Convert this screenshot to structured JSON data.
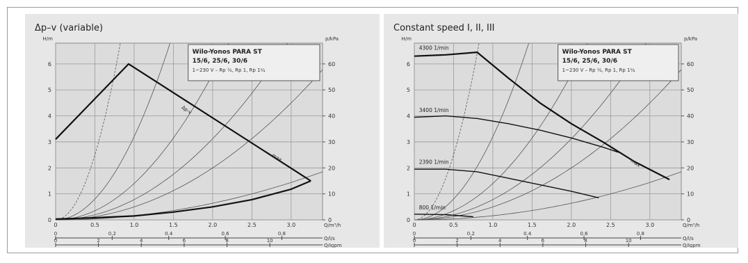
{
  "chart_data": [
    {
      "type": "line",
      "title": "Δp–v (variable)",
      "ylabel_left": "H/m",
      "ylabel_right": "p/kPa",
      "xlabel": "Q/m³/h",
      "xlim": [
        0,
        3.4
      ],
      "ylim": [
        0,
        6.8
      ],
      "xticks": [
        "0",
        "0.5",
        "1.0",
        "1.5",
        "2.0",
        "2.5",
        "3.0"
      ],
      "yticks_left": [
        "0",
        "1",
        "2",
        "3",
        "4",
        "5",
        "6"
      ],
      "yticks_right": [
        "0",
        "10",
        "20",
        "30",
        "40",
        "50",
        "60"
      ],
      "secondary_axes": [
        {
          "label": "Q/l/s",
          "max": 0.944,
          "ticks": [
            "0",
            "0.2",
            "0.4",
            "0.6",
            "0.8"
          ]
        },
        {
          "label": "Q/Igpm",
          "max": 12.46,
          "ticks": [
            "0",
            "2",
            "4",
            "6",
            "8",
            "10"
          ]
        }
      ],
      "legend_box": {
        "title": "Wilo-Yonos PARA ST",
        "models": "15/6, 25/6, 30/6",
        "spec": "1~230 V – Rp ½, Rp 1, Rp 1¼"
      },
      "series": [
        {
          "name": "Δp-v",
          "x": [
            0,
            0.93,
            3.25
          ],
          "y": [
            3.1,
            6.0,
            1.5
          ]
        },
        {
          "name": "max",
          "x": [
            0,
            0.5,
            1.0,
            1.5,
            2.0,
            2.5,
            3.0,
            3.25
          ],
          "y": [
            0.03,
            0.08,
            0.15,
            0.3,
            0.5,
            0.78,
            1.18,
            1.5
          ]
        }
      ],
      "curve_labels": [
        "Δp-v",
        "max"
      ]
    },
    {
      "type": "line",
      "title": "Constant speed I, II, III",
      "ylabel_left": "H/m",
      "ylabel_right": "p/kPa",
      "xlabel": "Q/m³/h",
      "xlim": [
        0,
        3.4
      ],
      "ylim": [
        0,
        6.8
      ],
      "xticks": [
        "0",
        "0.5",
        "1.0",
        "1.5",
        "2.0",
        "2.5",
        "3.0"
      ],
      "yticks_left": [
        "0",
        "1",
        "2",
        "3",
        "4",
        "5",
        "6"
      ],
      "yticks_right": [
        "0",
        "10",
        "20",
        "30",
        "40",
        "50",
        "60"
      ],
      "secondary_axes": [
        {
          "label": "Q/l/s",
          "max": 0.944,
          "ticks": [
            "0",
            "0.2",
            "0.4",
            "0.6",
            "0.8"
          ]
        },
        {
          "label": "Q/Igpm",
          "max": 12.46,
          "ticks": [
            "0",
            "2",
            "4",
            "6",
            "8",
            "10"
          ]
        }
      ],
      "legend_box": {
        "title": "Wilo-Yonos PARA ST",
        "models": "15/6, 25/6, 30/6",
        "spec": "1~230 V – Rp ½, Rp 1, Rp 1¼"
      },
      "series": [
        {
          "name": "4300 1/min",
          "x": [
            0,
            0.4,
            0.8,
            1.2,
            1.6,
            2.0,
            2.4,
            2.8,
            3.25
          ],
          "y": [
            6.3,
            6.35,
            6.45,
            5.45,
            4.5,
            3.7,
            3.0,
            2.25,
            1.55
          ]
        },
        {
          "name": "3400 1/min",
          "x": [
            0,
            0.4,
            0.8,
            1.2,
            1.6,
            2.0,
            2.4,
            2.6
          ],
          "y": [
            3.95,
            4.0,
            3.9,
            3.7,
            3.45,
            3.15,
            2.8,
            2.6
          ]
        },
        {
          "name": "2390 1/min",
          "x": [
            0,
            0.4,
            0.8,
            1.2,
            1.6,
            2.0,
            2.35
          ],
          "y": [
            1.95,
            1.95,
            1.85,
            1.6,
            1.35,
            1.1,
            0.85
          ]
        },
        {
          "name": "800 1/min",
          "x": [
            0,
            0.4,
            0.75
          ],
          "y": [
            0.22,
            0.2,
            0.12
          ]
        }
      ],
      "curve_labels": [
        "4300 1/min",
        "3400 1/min",
        "2390 1/min",
        "800 1/min",
        "max"
      ]
    }
  ]
}
